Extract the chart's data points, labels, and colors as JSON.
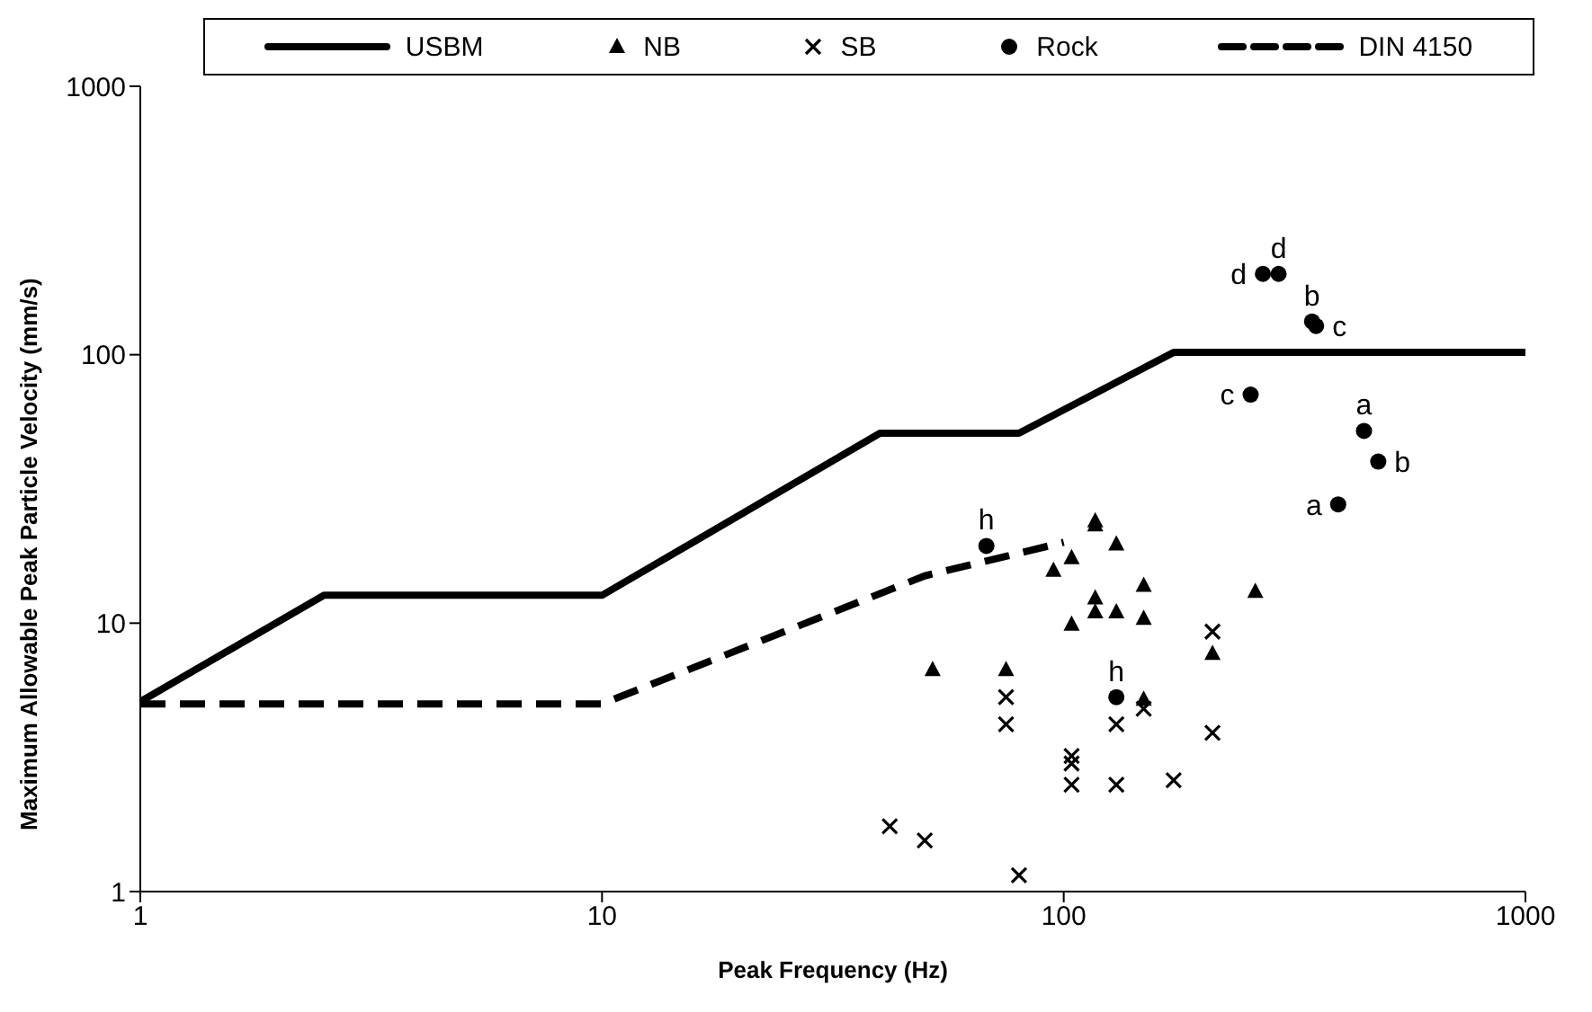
{
  "chart_data": {
    "type": "scatter",
    "xlabel": "Peak Frequency (Hz)",
    "ylabel": "Maximum Allowable Peak Particle Velocity (mm/s)",
    "log": "xy",
    "xlim": [
      1,
      1000
    ],
    "ylim": [
      1,
      1000
    ],
    "xticks": [
      1,
      10,
      100,
      1000
    ],
    "yticks": [
      1,
      10,
      100,
      1000
    ],
    "grid": false,
    "legend": "top",
    "series": [
      {
        "name": "USBM",
        "type": "line",
        "color": "#000000",
        "line_style": "solid",
        "marker": "none",
        "x": [
          1,
          2.5,
          10,
          40,
          80,
          173,
          1000
        ],
        "values": [
          5.1,
          12.7,
          12.7,
          51,
          51,
          102,
          102
        ]
      },
      {
        "name": "NB",
        "color": "#000000",
        "marker": "triangle",
        "x": [
          117,
          117,
          130,
          104,
          95,
          149,
          260,
          117,
          117,
          130,
          149,
          104,
          210,
          52,
          75,
          149
        ],
        "values": [
          24,
          23.2,
          19.7,
          17.5,
          15.7,
          13.8,
          13.1,
          12.4,
          11,
          11,
          10.4,
          9.9,
          7.7,
          6.7,
          6.7,
          5.2
        ]
      },
      {
        "name": "SB",
        "color": "#000000",
        "marker": "cross",
        "x": [
          210,
          75,
          75,
          149,
          130,
          210,
          104,
          104,
          104,
          130,
          173,
          42,
          50,
          80
        ],
        "values": [
          9.3,
          5.3,
          4.2,
          4.8,
          4.2,
          3.9,
          3.2,
          3,
          2.5,
          2.5,
          2.6,
          1.75,
          1.55,
          1.15
        ]
      },
      {
        "name": "Rock",
        "color": "#000000",
        "marker": "circle",
        "x": [
          270,
          292,
          345,
          352,
          254,
          447,
          480,
          393,
          68,
          130
        ],
        "values": [
          200,
          200,
          133,
          128,
          71,
          52,
          40,
          27.7,
          19.4,
          5.3
        ]
      },
      {
        "name": "DIN 4150",
        "type": "line",
        "color": "#000000",
        "line_style": "dashed",
        "marker": "none",
        "x": [
          1,
          10,
          50,
          100
        ],
        "values": [
          5,
          5,
          15,
          20
        ]
      }
    ],
    "annotations": [
      {
        "text": "d",
        "x": 270,
        "y": 200
      },
      {
        "text": "d",
        "x": 292,
        "y": 200
      },
      {
        "text": "b",
        "x": 345,
        "y": 133
      },
      {
        "text": "c",
        "x": 352,
        "y": 128
      },
      {
        "text": "c",
        "x": 254,
        "y": 71
      },
      {
        "text": "a",
        "x": 447,
        "y": 52
      },
      {
        "text": "b",
        "x": 480,
        "y": 40
      },
      {
        "text": "a",
        "x": 393,
        "y": 27.7
      },
      {
        "text": "h",
        "x": 68,
        "y": 19.4
      },
      {
        "text": "h",
        "x": 130,
        "y": 5.3
      }
    ]
  }
}
